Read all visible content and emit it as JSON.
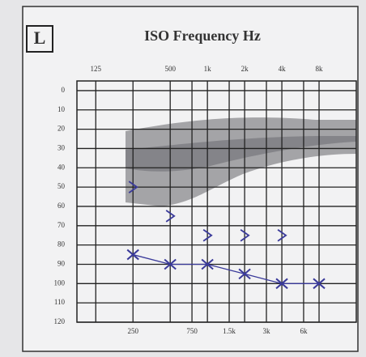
{
  "chart_data": {
    "type": "audiogram",
    "label": "L",
    "title": "ISO Frequency Hz",
    "xscale": "log",
    "xlim": [
      88,
      16000
    ],
    "xticks_top": [
      125,
      500,
      {
        "value": 1000,
        "label": "1k"
      },
      {
        "value": 2000,
        "label": "2k"
      },
      {
        "value": 4000,
        "label": "4k"
      },
      {
        "value": 8000,
        "label": "8k"
      }
    ],
    "xticks": [
      250,
      750,
      {
        "value": 1500,
        "label": "1.5k"
      },
      {
        "value": 3000,
        "label": "3k"
      },
      {
        "value": 6000,
        "label": "6k"
      }
    ],
    "ylim": [
      -5,
      120
    ],
    "yticks": [
      0,
      10,
      20,
      30,
      40,
      50,
      60,
      70,
      80,
      90,
      100,
      110,
      120
    ],
    "y_inverted": true,
    "grid": true,
    "series": [
      {
        "marker": "x",
        "color": "#3a3a9a",
        "line": true,
        "x": [
          250,
          500,
          1000,
          2000,
          4000,
          8000
        ],
        "values": [
          85,
          90,
          90,
          95,
          100,
          100
        ]
      },
      {
        "marker": ">",
        "color": "#3a3a9a",
        "line": false,
        "x": [
          250,
          500,
          1000,
          2000,
          4000
        ],
        "values": [
          50,
          65,
          75,
          75,
          75
        ]
      }
    ]
  }
}
